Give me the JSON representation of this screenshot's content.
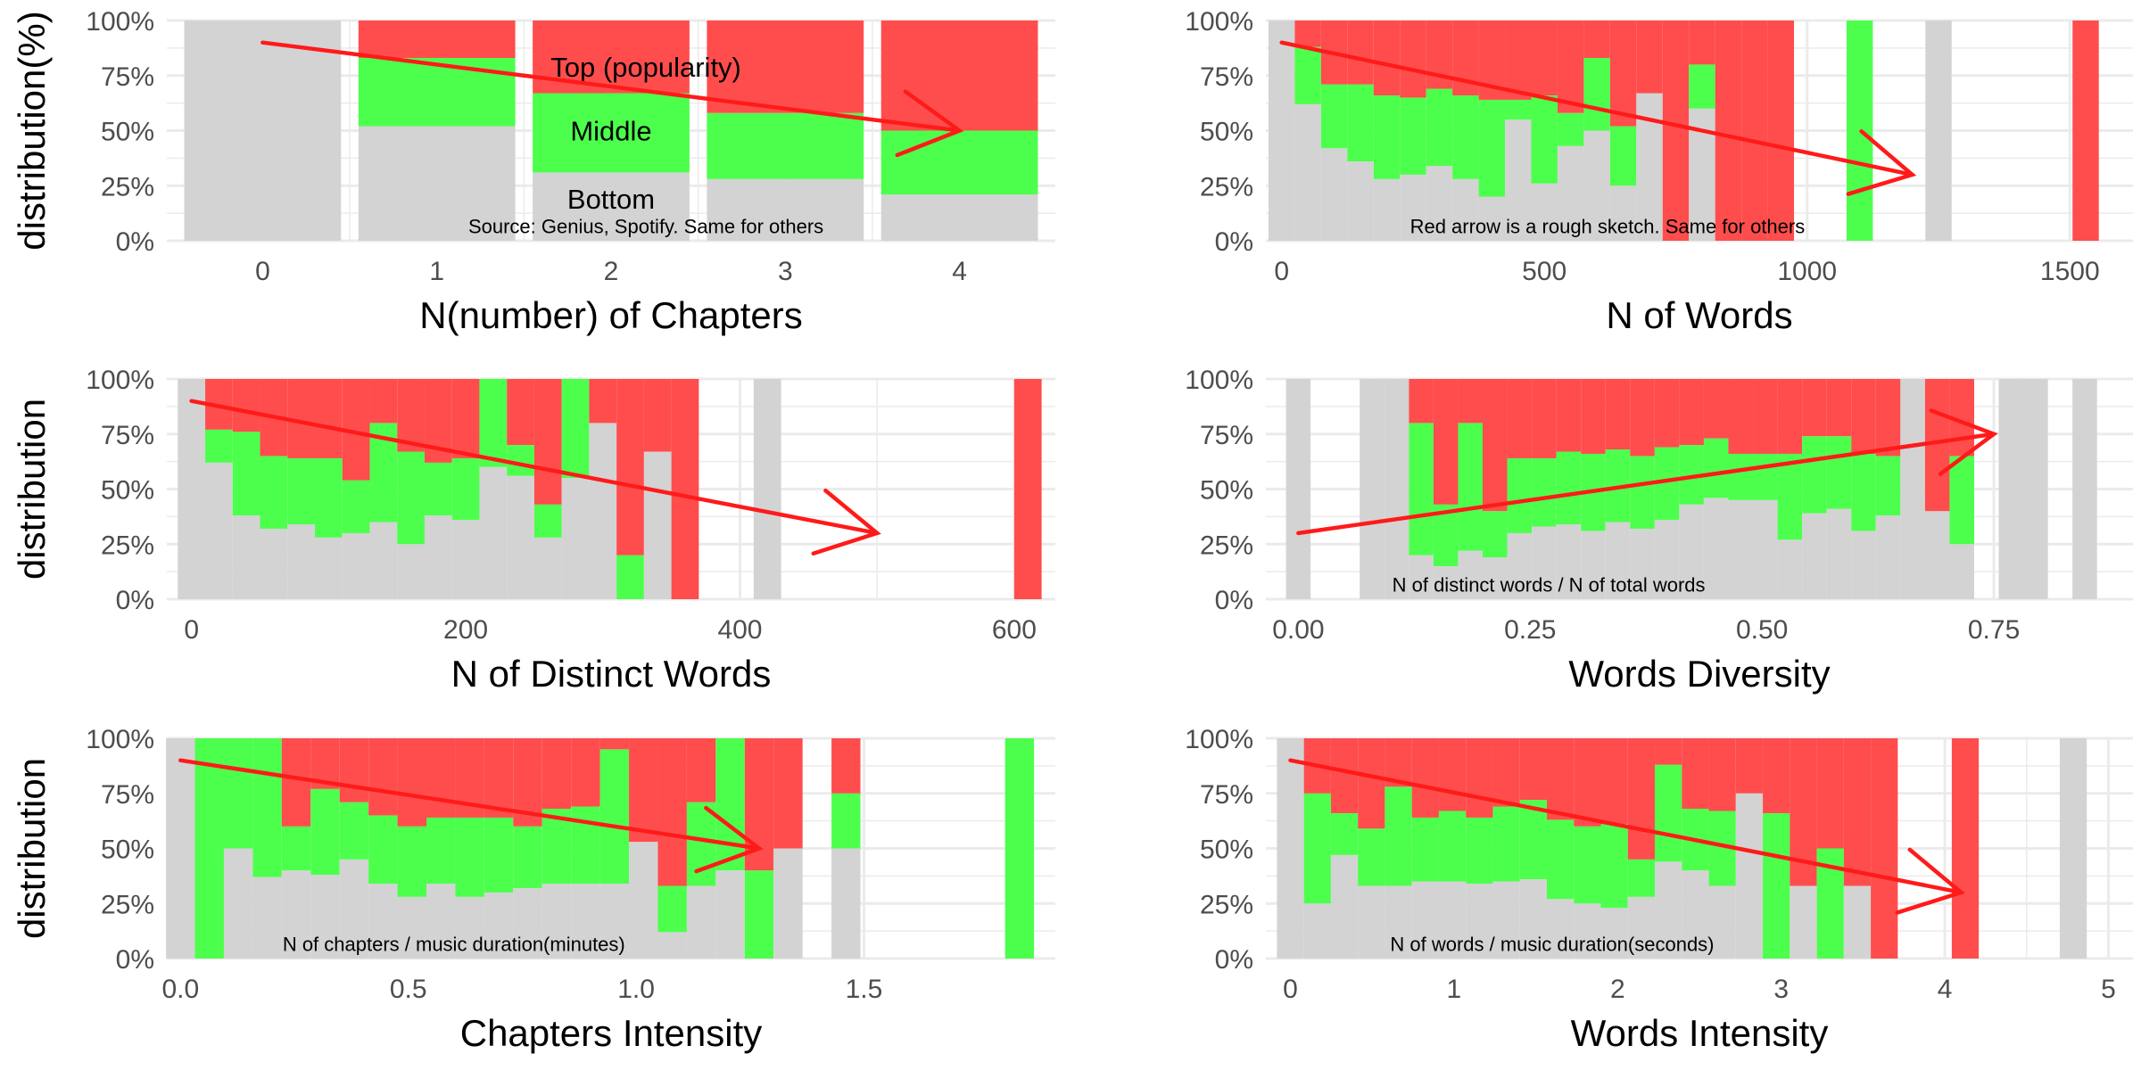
{
  "colors": {
    "top": "#ff4d4d",
    "middle": "#4dff4d",
    "bottom": "#d3d3d3",
    "arrow": "#ff1a1a",
    "grid": "#ebebeb"
  },
  "chart_data": [
    {
      "type": "bar",
      "stacked": "fill",
      "xlabel": "N(number) of Chapters",
      "ylabel": "distribution(%)",
      "xlim": [
        -0.55,
        4.55
      ],
      "xticks": [
        0,
        1,
        2,
        3,
        4
      ],
      "xtick_labels": [
        "0",
        "1",
        "2",
        "3",
        "4"
      ],
      "ylim": [
        0,
        1
      ],
      "yticks": [
        "0%",
        "25%",
        "50%",
        "75%",
        "100%"
      ],
      "bin_width": 0.9,
      "bins": [
        {
          "x": 0,
          "bottom": 1.0,
          "middle": 0.0
        },
        {
          "x": 1,
          "bottom": 0.52,
          "middle": 0.31
        },
        {
          "x": 2,
          "bottom": 0.31,
          "middle": 0.36
        },
        {
          "x": 3,
          "bottom": 0.28,
          "middle": 0.3
        },
        {
          "x": 4,
          "bottom": 0.21,
          "middle": 0.29
        }
      ],
      "arrow": {
        "x1": 0,
        "y1": 0.9,
        "x2": 4,
        "y2": 0.5
      },
      "note": {
        "text": "Source: Genius, Spotify. Same for others",
        "x": 2.2,
        "y": 0.035
      },
      "series_labels": [
        {
          "text": "Top (popularity)",
          "x": 2.2,
          "y": 0.79
        },
        {
          "text": "Middle",
          "x": 2.0,
          "y": 0.5
        },
        {
          "text": "Bottom",
          "x": 2.0,
          "y": 0.19
        }
      ]
    },
    {
      "type": "bar",
      "stacked": "fill",
      "xlabel": "N of Words",
      "ylabel": "",
      "xlim": [
        -30,
        1620
      ],
      "xticks": [
        0,
        500,
        1000,
        1500
      ],
      "xtick_labels": [
        "0",
        "500",
        "1000",
        "1500"
      ],
      "ylim": [
        0,
        1
      ],
      "yticks": [
        "0%",
        "25%",
        "50%",
        "75%",
        "100%"
      ],
      "bin_width": 50,
      "bins": [
        {
          "x": 0,
          "bottom": 1.0,
          "middle": 0.0
        },
        {
          "x": 50,
          "bottom": 0.62,
          "middle": 0.26
        },
        {
          "x": 100,
          "bottom": 0.42,
          "middle": 0.29
        },
        {
          "x": 150,
          "bottom": 0.36,
          "middle": 0.35
        },
        {
          "x": 200,
          "bottom": 0.28,
          "middle": 0.38
        },
        {
          "x": 250,
          "bottom": 0.3,
          "middle": 0.35
        },
        {
          "x": 300,
          "bottom": 0.34,
          "middle": 0.35
        },
        {
          "x": 350,
          "bottom": 0.28,
          "middle": 0.38
        },
        {
          "x": 400,
          "bottom": 0.2,
          "middle": 0.44
        },
        {
          "x": 450,
          "bottom": 0.55,
          "middle": 0.09
        },
        {
          "x": 500,
          "bottom": 0.26,
          "middle": 0.4
        },
        {
          "x": 550,
          "bottom": 0.43,
          "middle": 0.15
        },
        {
          "x": 600,
          "bottom": 0.5,
          "middle": 0.33
        },
        {
          "x": 650,
          "bottom": 0.25,
          "middle": 0.27
        },
        {
          "x": 700,
          "bottom": 0.67,
          "middle": 0.0
        },
        {
          "x": 750,
          "bottom": 0.0,
          "middle": 0.0
        },
        {
          "x": 800,
          "bottom": 0.6,
          "middle": 0.2
        },
        {
          "x": 850,
          "bottom": 0.0,
          "middle": 0.0
        },
        {
          "x": 900,
          "bottom": 0.0,
          "middle": 0.0
        },
        {
          "x": 950,
          "bottom": 0.0,
          "middle": 0.0
        },
        {
          "x": 1100,
          "bottom": 0.0,
          "middle": 1.0
        },
        {
          "x": 1250,
          "bottom": 1.0,
          "middle": 0.0
        },
        {
          "x": 1530,
          "bottom": 0.0,
          "middle": 0.0
        }
      ],
      "arrow": {
        "x1": 0,
        "y1": 0.9,
        "x2": 1200,
        "y2": 0.3
      },
      "note": {
        "text": "Red arrow is a rough sketch. Same for others",
        "x": 620,
        "y": 0.035
      }
    },
    {
      "type": "bar",
      "stacked": "fill",
      "xlabel": "N of Distinct Words",
      "ylabel": "distribution",
      "xlim": [
        -18,
        630
      ],
      "xticks": [
        0,
        200,
        400,
        600
      ],
      "xtick_labels": [
        "0",
        "200",
        "400",
        "600"
      ],
      "ylim": [
        0,
        1
      ],
      "yticks": [
        "0%",
        "25%",
        "50%",
        "75%",
        "100%"
      ],
      "bin_width": 20,
      "bins": [
        {
          "x": 0,
          "bottom": 1.0,
          "middle": 0.0
        },
        {
          "x": 20,
          "bottom": 0.62,
          "middle": 0.15
        },
        {
          "x": 40,
          "bottom": 0.38,
          "middle": 0.38
        },
        {
          "x": 60,
          "bottom": 0.32,
          "middle": 0.33
        },
        {
          "x": 80,
          "bottom": 0.34,
          "middle": 0.3
        },
        {
          "x": 100,
          "bottom": 0.28,
          "middle": 0.36
        },
        {
          "x": 120,
          "bottom": 0.3,
          "middle": 0.24
        },
        {
          "x": 140,
          "bottom": 0.35,
          "middle": 0.45
        },
        {
          "x": 160,
          "bottom": 0.25,
          "middle": 0.42
        },
        {
          "x": 180,
          "bottom": 0.38,
          "middle": 0.24
        },
        {
          "x": 200,
          "bottom": 0.36,
          "middle": 0.28
        },
        {
          "x": 220,
          "bottom": 0.6,
          "middle": 0.4
        },
        {
          "x": 240,
          "bottom": 0.56,
          "middle": 0.14
        },
        {
          "x": 260,
          "bottom": 0.28,
          "middle": 0.15
        },
        {
          "x": 280,
          "bottom": 0.55,
          "middle": 0.45
        },
        {
          "x": 300,
          "bottom": 0.8,
          "middle": 0.0
        },
        {
          "x": 320,
          "bottom": 0.0,
          "middle": 0.2
        },
        {
          "x": 340,
          "bottom": 0.67,
          "middle": 0.0
        },
        {
          "x": 360,
          "bottom": 0.0,
          "middle": 0.0
        },
        {
          "x": 420,
          "bottom": 1.0,
          "middle": 0.0
        },
        {
          "x": 610,
          "bottom": 0.0,
          "middle": 0.0
        }
      ],
      "arrow": {
        "x1": 0,
        "y1": 0.9,
        "x2": 500,
        "y2": 0.3
      }
    },
    {
      "type": "bar",
      "stacked": "fill",
      "xlabel": "Words Diversity",
      "ylabel": "",
      "xlim": [
        -0.035,
        0.9
      ],
      "xticks": [
        0.0,
        0.25,
        0.5,
        0.75
      ],
      "xtick_labels": [
        "0.00",
        "0.25",
        "0.50",
        "0.75"
      ],
      "ylim": [
        0,
        1
      ],
      "yticks": [
        "0%",
        "25%",
        "50%",
        "75%",
        "100%"
      ],
      "bin_width": 0.0265,
      "bins": [
        {
          "x": 0.0,
          "bottom": 1.0,
          "middle": 0.0
        },
        {
          "x": 0.0795,
          "bottom": 1.0,
          "middle": 0.0
        },
        {
          "x": 0.106,
          "bottom": 1.0,
          "middle": 0.0
        },
        {
          "x": 0.1325,
          "bottom": 0.2,
          "middle": 0.6
        },
        {
          "x": 0.159,
          "bottom": 0.15,
          "middle": 0.28
        },
        {
          "x": 0.1855,
          "bottom": 0.22,
          "middle": 0.58
        },
        {
          "x": 0.212,
          "bottom": 0.19,
          "middle": 0.21
        },
        {
          "x": 0.2385,
          "bottom": 0.3,
          "middle": 0.34
        },
        {
          "x": 0.265,
          "bottom": 0.33,
          "middle": 0.31
        },
        {
          "x": 0.2915,
          "bottom": 0.34,
          "middle": 0.33
        },
        {
          "x": 0.318,
          "bottom": 0.31,
          "middle": 0.35
        },
        {
          "x": 0.3445,
          "bottom": 0.35,
          "middle": 0.33
        },
        {
          "x": 0.371,
          "bottom": 0.32,
          "middle": 0.33
        },
        {
          "x": 0.3975,
          "bottom": 0.36,
          "middle": 0.33
        },
        {
          "x": 0.424,
          "bottom": 0.43,
          "middle": 0.27
        },
        {
          "x": 0.4505,
          "bottom": 0.46,
          "middle": 0.27
        },
        {
          "x": 0.477,
          "bottom": 0.45,
          "middle": 0.21
        },
        {
          "x": 0.5035,
          "bottom": 0.45,
          "middle": 0.21
        },
        {
          "x": 0.53,
          "bottom": 0.27,
          "middle": 0.39
        },
        {
          "x": 0.5565,
          "bottom": 0.39,
          "middle": 0.35
        },
        {
          "x": 0.583,
          "bottom": 0.41,
          "middle": 0.33
        },
        {
          "x": 0.6095,
          "bottom": 0.31,
          "middle": 0.35
        },
        {
          "x": 0.636,
          "bottom": 0.38,
          "middle": 0.27
        },
        {
          "x": 0.6625,
          "bottom": 1.0,
          "middle": 0.0
        },
        {
          "x": 0.689,
          "bottom": 0.4,
          "middle": 0.0
        },
        {
          "x": 0.7155,
          "bottom": 0.25,
          "middle": 0.4
        },
        {
          "x": 0.7685,
          "bottom": 1.0,
          "middle": 0.0
        },
        {
          "x": 0.795,
          "bottom": 1.0,
          "middle": 0.0
        },
        {
          "x": 0.848,
          "bottom": 1.0,
          "middle": 0.0
        }
      ],
      "arrow": {
        "x1": 0.0,
        "y1": 0.3,
        "x2": 0.75,
        "y2": 0.75
      },
      "note": {
        "text": "N of distinct words / N of total words",
        "x": 0.27,
        "y": 0.035
      }
    },
    {
      "type": "bar",
      "stacked": "fill",
      "xlabel": "Chapters Intensity",
      "ylabel": "distribution",
      "xlim": [
        -0.03,
        1.92
      ],
      "xticks": [
        0.0,
        0.5,
        1.0,
        1.5
      ],
      "xtick_labels": [
        "0.0",
        "0.5",
        "1.0",
        "1.5"
      ],
      "ylim": [
        0,
        1
      ],
      "yticks": [
        "0%",
        "25%",
        "50%",
        "75%",
        "100%"
      ],
      "bin_width": 0.0635,
      "bins": [
        {
          "x": 0.0,
          "bottom": 1.0,
          "middle": 0.0
        },
        {
          "x": 0.0635,
          "bottom": 0.0,
          "middle": 1.0
        },
        {
          "x": 0.127,
          "bottom": 0.5,
          "middle": 0.5
        },
        {
          "x": 0.1905,
          "bottom": 0.37,
          "middle": 0.63
        },
        {
          "x": 0.254,
          "bottom": 0.4,
          "middle": 0.2
        },
        {
          "x": 0.3175,
          "bottom": 0.38,
          "middle": 0.39
        },
        {
          "x": 0.381,
          "bottom": 0.45,
          "middle": 0.26
        },
        {
          "x": 0.4445,
          "bottom": 0.34,
          "middle": 0.31
        },
        {
          "x": 0.508,
          "bottom": 0.28,
          "middle": 0.32
        },
        {
          "x": 0.5715,
          "bottom": 0.34,
          "middle": 0.3
        },
        {
          "x": 0.635,
          "bottom": 0.28,
          "middle": 0.36
        },
        {
          "x": 0.6985,
          "bottom": 0.3,
          "middle": 0.34
        },
        {
          "x": 0.762,
          "bottom": 0.32,
          "middle": 0.28
        },
        {
          "x": 0.8255,
          "bottom": 0.34,
          "middle": 0.34
        },
        {
          "x": 0.889,
          "bottom": 0.34,
          "middle": 0.35
        },
        {
          "x": 0.9525,
          "bottom": 0.34,
          "middle": 0.61
        },
        {
          "x": 1.016,
          "bottom": 0.53,
          "middle": 0.0
        },
        {
          "x": 1.0795,
          "bottom": 0.12,
          "middle": 0.21
        },
        {
          "x": 1.143,
          "bottom": 0.33,
          "middle": 0.38
        },
        {
          "x": 1.2065,
          "bottom": 0.4,
          "middle": 0.6
        },
        {
          "x": 1.27,
          "bottom": 0.0,
          "middle": 0.4
        },
        {
          "x": 1.3335,
          "bottom": 0.5,
          "middle": 0.0
        },
        {
          "x": 1.4605,
          "bottom": 0.5,
          "middle": 0.25
        },
        {
          "x": 1.8415,
          "bottom": 0.0,
          "middle": 1.0
        }
      ],
      "arrow": {
        "x1": 0.0,
        "y1": 0.9,
        "x2": 1.27,
        "y2": 0.5
      },
      "note": {
        "text": "N of chapters / music duration(minutes)",
        "x": 0.6,
        "y": 0.035
      }
    },
    {
      "type": "bar",
      "stacked": "fill",
      "xlabel": "Words Intensity",
      "ylabel": "",
      "xlim": [
        -0.15,
        5.15
      ],
      "xticks": [
        0,
        1,
        2,
        3,
        4,
        5
      ],
      "xtick_labels": [
        "0",
        "1",
        "2",
        "3",
        "4",
        "5"
      ],
      "ylim": [
        0,
        1
      ],
      "yticks": [
        "0%",
        "25%",
        "50%",
        "75%",
        "100%"
      ],
      "bin_width": 0.165,
      "bins": [
        {
          "x": 0.0,
          "bottom": 1.0,
          "middle": 0.0
        },
        {
          "x": 0.165,
          "bottom": 0.25,
          "middle": 0.5
        },
        {
          "x": 0.33,
          "bottom": 0.47,
          "middle": 0.19
        },
        {
          "x": 0.495,
          "bottom": 0.33,
          "middle": 0.26
        },
        {
          "x": 0.66,
          "bottom": 0.33,
          "middle": 0.45
        },
        {
          "x": 0.825,
          "bottom": 0.35,
          "middle": 0.29
        },
        {
          "x": 0.99,
          "bottom": 0.35,
          "middle": 0.32
        },
        {
          "x": 1.155,
          "bottom": 0.34,
          "middle": 0.3
        },
        {
          "x": 1.32,
          "bottom": 0.35,
          "middle": 0.34
        },
        {
          "x": 1.485,
          "bottom": 0.36,
          "middle": 0.36
        },
        {
          "x": 1.65,
          "bottom": 0.27,
          "middle": 0.36
        },
        {
          "x": 1.815,
          "bottom": 0.25,
          "middle": 0.35
        },
        {
          "x": 1.98,
          "bottom": 0.23,
          "middle": 0.38
        },
        {
          "x": 2.145,
          "bottom": 0.28,
          "middle": 0.17
        },
        {
          "x": 2.31,
          "bottom": 0.44,
          "middle": 0.44
        },
        {
          "x": 2.475,
          "bottom": 0.4,
          "middle": 0.28
        },
        {
          "x": 2.64,
          "bottom": 0.33,
          "middle": 0.34
        },
        {
          "x": 2.805,
          "bottom": 0.75,
          "middle": 0.0
        },
        {
          "x": 2.97,
          "bottom": 0.0,
          "middle": 0.66
        },
        {
          "x": 3.135,
          "bottom": 0.33,
          "middle": 0.0
        },
        {
          "x": 3.3,
          "bottom": 0.0,
          "middle": 0.5
        },
        {
          "x": 3.465,
          "bottom": 0.33,
          "middle": 0.0
        },
        {
          "x": 3.63,
          "bottom": 0.0,
          "middle": 0.0
        },
        {
          "x": 4.125,
          "bottom": 0.0,
          "middle": 0.0
        },
        {
          "x": 4.785,
          "bottom": 1.0,
          "middle": 0.0
        }
      ],
      "arrow": {
        "x1": 0.0,
        "y1": 0.9,
        "x2": 4.1,
        "y2": 0.3
      },
      "note": {
        "text": "N of words / music duration(seconds)",
        "x": 1.6,
        "y": 0.035
      }
    }
  ]
}
